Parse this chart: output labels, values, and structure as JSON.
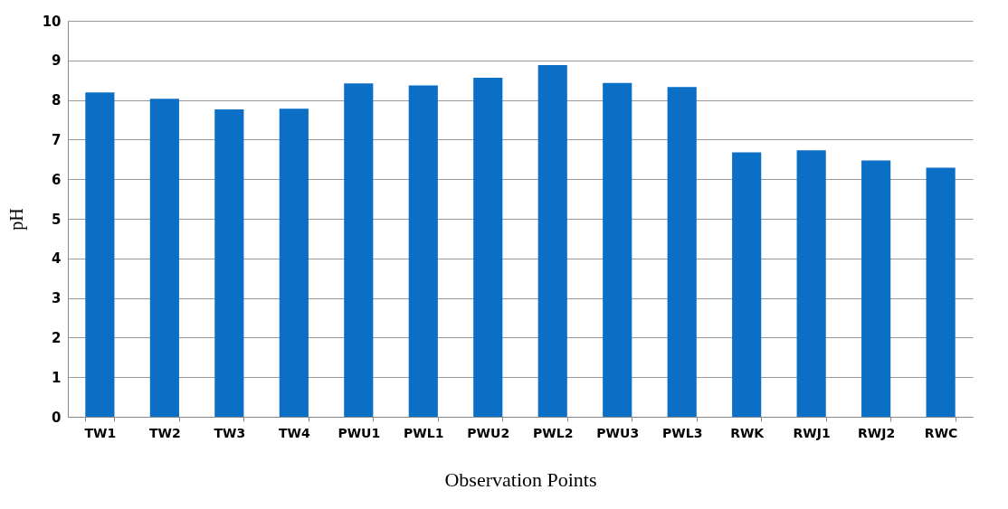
{
  "chart_data": {
    "type": "bar",
    "xlabel": "Observation Points",
    "ylabel": "pH",
    "categories": [
      "TW1",
      "TW2",
      "TW3",
      "TW4",
      "PWU1",
      "PWL1",
      "PWU2",
      "PWL2",
      "PWU3",
      "PWL3",
      "RWK",
      "RWJ1",
      "RWJ2",
      "RWC"
    ],
    "values": [
      8.19,
      8.03,
      7.76,
      7.78,
      8.42,
      8.37,
      8.56,
      8.88,
      8.43,
      8.33,
      6.68,
      6.73,
      6.47,
      6.29
    ],
    "color": "#0b6fc6",
    "ylim": [
      0,
      10
    ],
    "yticks": [
      0,
      1,
      2,
      3,
      4,
      5,
      6,
      7,
      8,
      9,
      10
    ],
    "grid": "y"
  }
}
